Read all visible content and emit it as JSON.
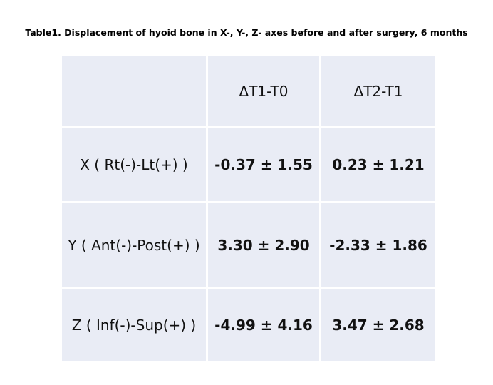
{
  "header": {
    "title": "Table1. Displacement of hyoid bone in X-, Y-, Z- axes before and after surgery, 6 months"
  },
  "table": {
    "columns": [
      "ΔT1-T0",
      "ΔT2-T1"
    ],
    "rows": [
      {
        "label": "X ( Rt(-)-Lt(+) )",
        "cells": [
          "-0.37 ± 1.55",
          "0.23 ± 1.21"
        ]
      },
      {
        "label": "Y ( Ant(-)-Post(+) )",
        "cells": [
          "3.30 ± 2.90",
          "-2.33 ± 1.86"
        ]
      },
      {
        "label": "Z ( Inf(-)-Sup(+) )",
        "cells": [
          "-4.99 ± 4.16",
          "3.47 ± 2.68"
        ]
      }
    ]
  }
}
